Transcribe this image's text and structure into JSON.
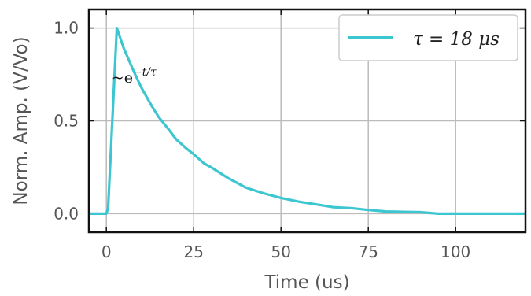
{
  "chart_data": {
    "type": "line",
    "xlabel": "Time (us)",
    "ylabel": "Norm. Amp. (V/Vo)",
    "xlim": [
      -5,
      120
    ],
    "ylim": [
      -0.1,
      1.1
    ],
    "x_ticks": [
      0,
      25,
      50,
      75,
      100
    ],
    "x_tick_labels": [
      "0",
      "25",
      "50",
      "75",
      "100"
    ],
    "y_ticks": [
      0.0,
      0.5,
      1.0
    ],
    "y_tick_labels": [
      "0.0",
      "0.5",
      "1.0"
    ],
    "grid": true,
    "legend_position": "top-right",
    "series_color": "#3cc6cf",
    "series": [
      {
        "name": "τ = 18 μs",
        "x": [
          -5,
          0,
          0.5,
          3,
          5,
          8,
          10,
          13,
          15,
          18,
          20,
          23,
          25,
          28,
          30,
          35,
          40,
          45,
          50,
          55,
          60,
          65,
          70,
          75,
          80,
          85,
          90,
          95,
          100,
          110,
          120
        ],
        "y": [
          0.0,
          0.0,
          0.03,
          1.0,
          0.89,
          0.76,
          0.68,
          0.58,
          0.52,
          0.45,
          0.4,
          0.35,
          0.32,
          0.27,
          0.25,
          0.19,
          0.14,
          0.11,
          0.085,
          0.065,
          0.05,
          0.035,
          0.03,
          0.02,
          0.012,
          0.01,
          0.008,
          0.0,
          0.0,
          0.0,
          0.0
        ]
      }
    ],
    "annotation": {
      "prefix": "~e",
      "exponent": "−t/τ",
      "x": 15,
      "y": 0.68
    }
  }
}
